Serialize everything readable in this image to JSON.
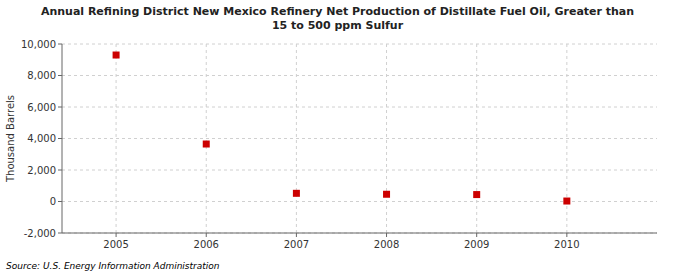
{
  "chart_data": {
    "type": "scatter",
    "title": "Annual Refining District New Mexico Refinery Net Production of Distillate Fuel Oil, Greater than\n15 to 500 ppm Sulfur",
    "y_label": "Thousand Barrels",
    "annotations": [
      "Source: U.S. Energy Information Administration"
    ],
    "x": [
      2005,
      2006,
      2007,
      2008,
      2009,
      2010
    ],
    "values": [
      9300,
      3650,
      520,
      460,
      440,
      30
    ],
    "color": "#cc0000",
    "marker": "square",
    "xlim": [
      2004.4,
      2011.0
    ],
    "xticks": [
      2005,
      2006,
      2007,
      2008,
      2009,
      2010
    ],
    "ylim": [
      -2000,
      10000
    ],
    "yticks": [
      {
        "value": -2000,
        "label": "-2,000"
      },
      0,
      {
        "value": 2000,
        "label": "2,000"
      },
      {
        "value": 4000,
        "label": "4,000"
      },
      {
        "value": 6000,
        "label": "6,000"
      },
      {
        "value": 8000,
        "label": "8,000"
      },
      {
        "value": 10000,
        "label": "10,000"
      }
    ],
    "grid": true
  }
}
